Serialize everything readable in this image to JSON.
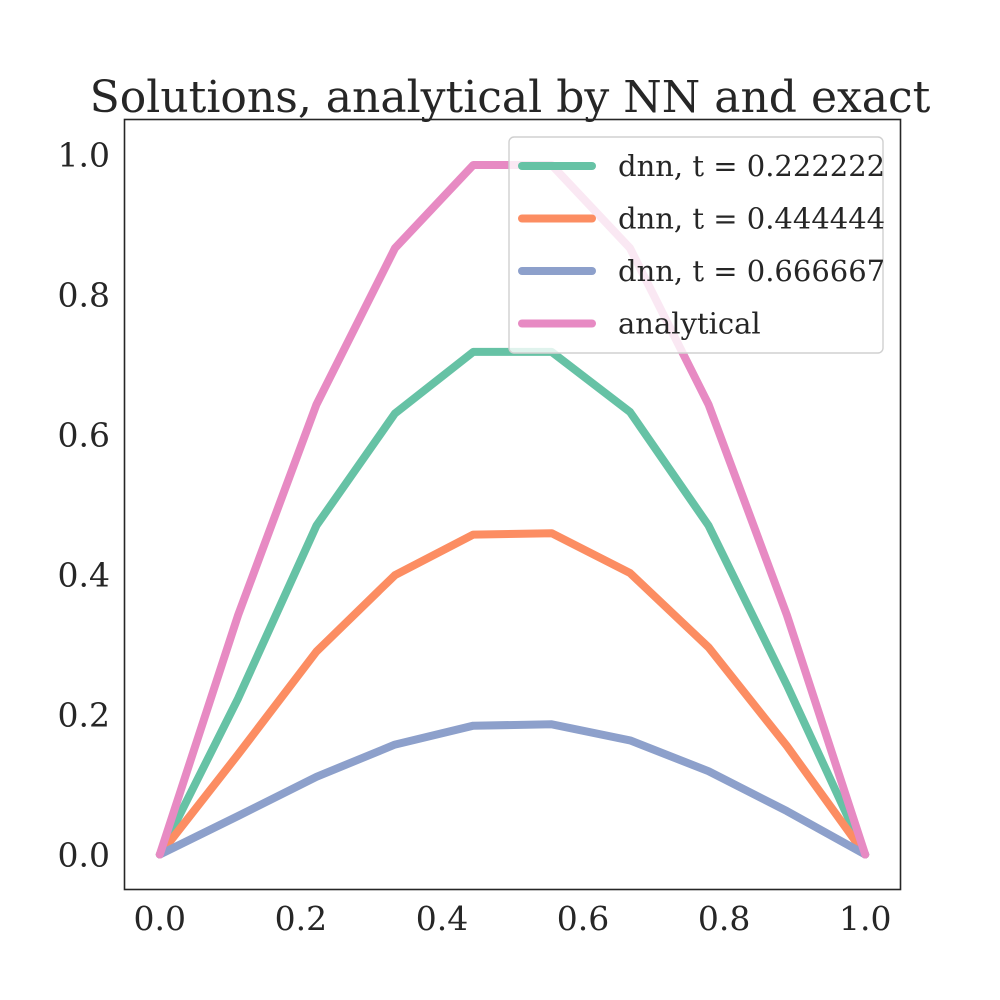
{
  "chart_data": {
    "type": "line",
    "title": "Solutions, analytical by NN and exact",
    "xlabel": "",
    "ylabel": "",
    "xlim": [
      -0.05,
      1.05
    ],
    "ylim": [
      -0.05,
      1.05
    ],
    "xticks": [
      0.0,
      0.2,
      0.4,
      0.6,
      0.8,
      1.0
    ],
    "yticks": [
      0.0,
      0.2,
      0.4,
      0.6,
      0.8,
      1.0
    ],
    "xtick_labels": [
      "0.0",
      "0.2",
      "0.4",
      "0.6",
      "0.8",
      "1.0"
    ],
    "ytick_labels": [
      "0.0",
      "0.2",
      "0.4",
      "0.6",
      "0.8",
      "1.0"
    ],
    "grid": false,
    "legend_position": "top-right",
    "x": [
      0.0,
      0.1111,
      0.2222,
      0.3333,
      0.4444,
      0.5556,
      0.6667,
      0.7778,
      0.8889,
      1.0
    ],
    "series": [
      {
        "name": "dnn, t = 0.222222",
        "color": "#66c2a5",
        "values": [
          0.0,
          0.223,
          0.47,
          0.63,
          0.718,
          0.718,
          0.632,
          0.47,
          0.242,
          0.0
        ]
      },
      {
        "name": "dnn, t = 0.444444",
        "color": "#fc8d62",
        "values": [
          0.0,
          0.143,
          0.29,
          0.399,
          0.457,
          0.459,
          0.402,
          0.296,
          0.155,
          0.0
        ]
      },
      {
        "name": "dnn, t = 0.666667",
        "color": "#8da0cb",
        "values": [
          0.0,
          0.055,
          0.111,
          0.157,
          0.184,
          0.186,
          0.163,
          0.119,
          0.062,
          0.0
        ]
      },
      {
        "name": "analytical",
        "color": "#e78ac3",
        "values": [
          0.0,
          0.342,
          0.643,
          0.866,
          0.985,
          0.985,
          0.866,
          0.643,
          0.342,
          0.0
        ]
      }
    ]
  }
}
